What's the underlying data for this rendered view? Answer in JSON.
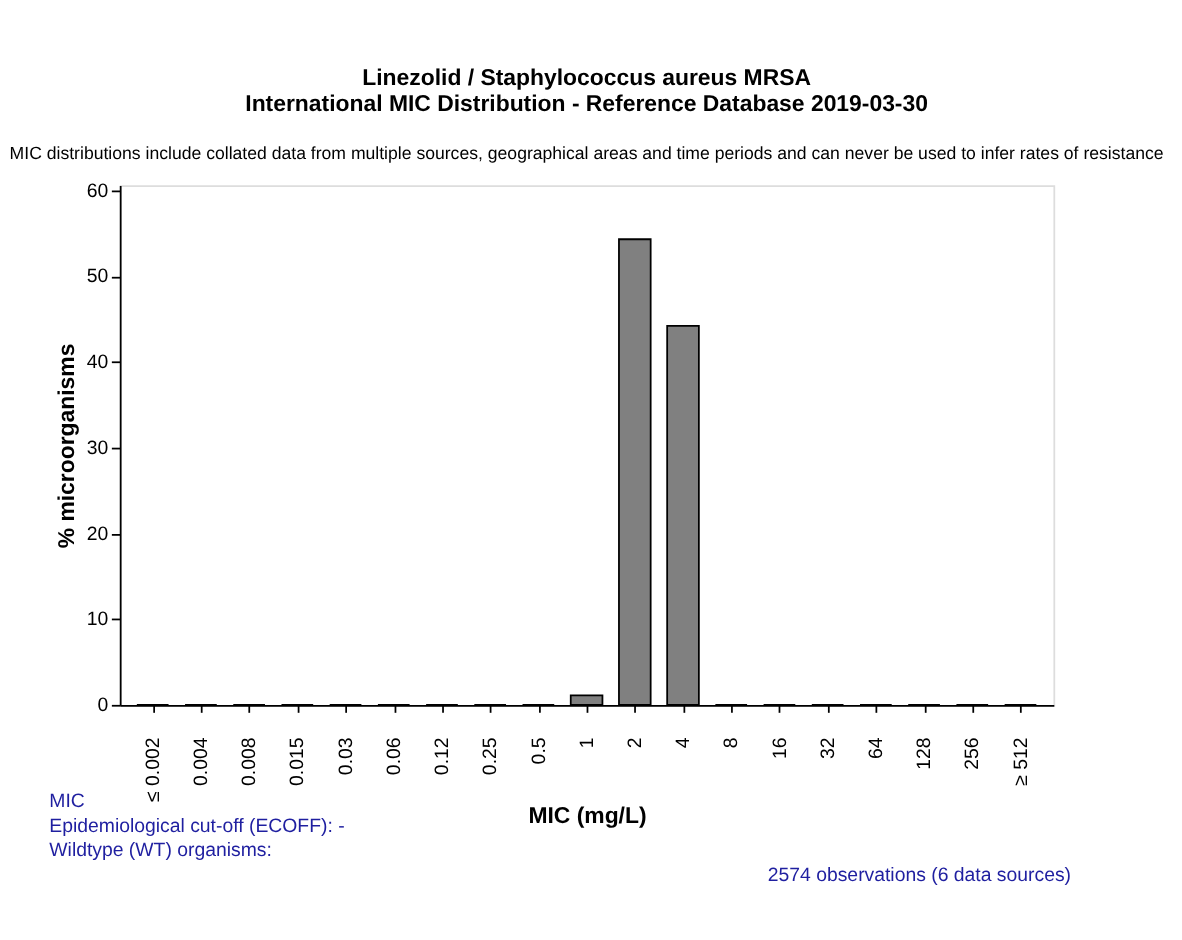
{
  "chart_data": {
    "type": "bar",
    "title": "Linezolid / Staphylococcus aureus MRSA\nInternational MIC Distribution - Reference Database 2019-03-30",
    "subtitle": "MIC distributions include collated data from multiple sources, geographical areas and time periods and can never be used to infer rates of resistance",
    "xlabel": "MIC (mg/L)",
    "ylabel": "% microorganisms",
    "categories": [
      "≤ 0.002",
      "0.004",
      "0.008",
      "0.015",
      "0.03",
      "0.06",
      "0.12",
      "0.25",
      "0.5",
      "1",
      "2",
      "4",
      "8",
      "16",
      "32",
      "64",
      "128",
      "256",
      "≥ 512"
    ],
    "series": [
      {
        "color": "#808080",
        "values": [
          0,
          0,
          0,
          0,
          0,
          0,
          0,
          0,
          0,
          1.1,
          54.3,
          44.2,
          0,
          0,
          0,
          0,
          0,
          0,
          0
        ]
      }
    ],
    "ylim": [
      0,
      60.6
    ],
    "yticks": [
      0,
      10,
      20,
      30,
      40,
      50,
      60
    ],
    "grid": false,
    "legend": false,
    "annotations": [
      "MIC",
      "Epidemiological cut-off (ECOFF):  -",
      "Wildtype (WT) organisms:",
      "2574 observations (6 data sources)"
    ]
  }
}
